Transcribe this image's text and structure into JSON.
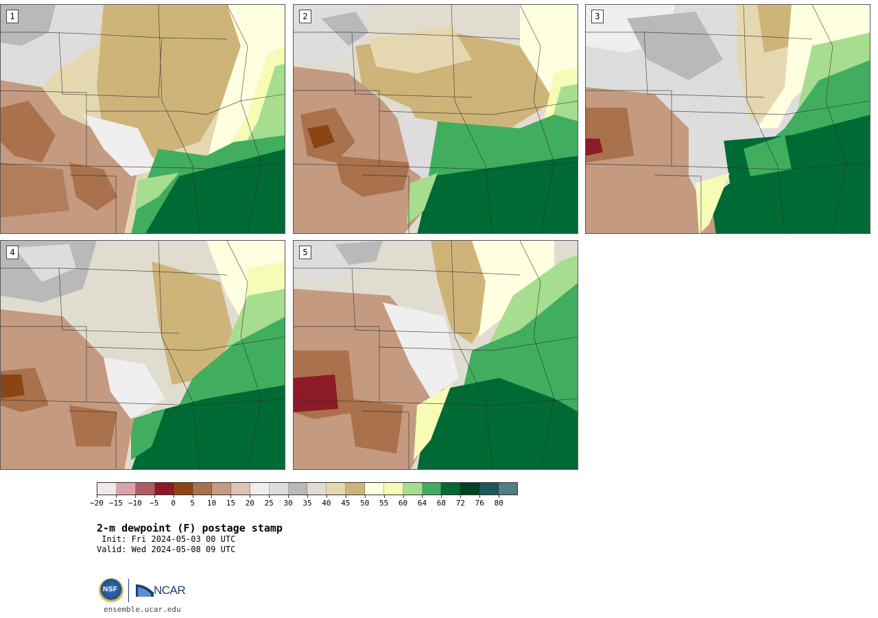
{
  "panels": [
    {
      "label": "1"
    },
    {
      "label": "2"
    },
    {
      "label": "3"
    },
    {
      "label": "4"
    },
    {
      "label": "5"
    }
  ],
  "colorbar": {
    "colors": [
      "#f6e8ea",
      "#d9a3ab",
      "#b05c65",
      "#8c1a27",
      "#8b4513",
      "#a9714c",
      "#c49a80",
      "#dfc2b2",
      "#efefef",
      "#dddddd",
      "#b9b9b9",
      "#e0ddd0",
      "#e5d8b1",
      "#cfb47a",
      "#fefee0",
      "#f6fbb5",
      "#a6dd8e",
      "#41ae5f",
      "#006a35",
      "#00411f",
      "#1b5a5a",
      "#4f7d80"
    ],
    "tick_labels": [
      "−20",
      "−15",
      "−10",
      "−5",
      "0",
      "5",
      "10",
      "15",
      "20",
      "25",
      "30",
      "35",
      "40",
      "45",
      "50",
      "55",
      "60",
      "64",
      "68",
      "72",
      "76",
      "80"
    ]
  },
  "title": "2-m dewpoint (F) postage stamp",
  "init": " Init: Fri 2024-05-03 00 UTC",
  "valid": "Valid: Wed 2024-05-08 09 UTC",
  "logos": {
    "nsf": "NSF",
    "ncar": "NCAR"
  },
  "site": "ensemble.ucar.edu"
}
